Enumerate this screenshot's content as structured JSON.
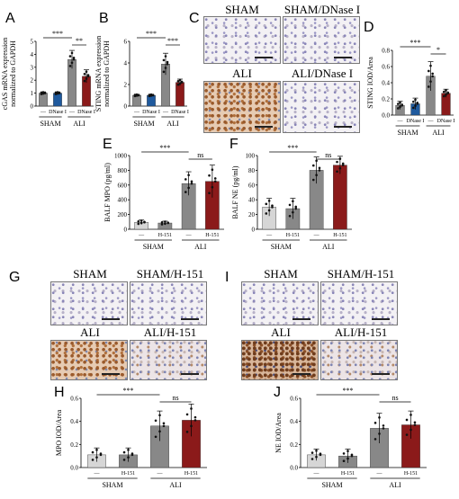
{
  "panel_letters": [
    "A",
    "B",
    "C",
    "D",
    "E",
    "F",
    "G",
    "H",
    "I",
    "J"
  ],
  "micrographs": {
    "C": {
      "top_left": "SHAM",
      "top_right": "SHAM/DNase I",
      "bottom_left": "ALI",
      "bottom_right": "ALI/DNase I"
    },
    "G": {
      "top_left": "SHAM",
      "top_right": "SHAM/H-151",
      "bottom_left": "ALI",
      "bottom_right": "ALI/H-151"
    },
    "I": {
      "top_left": "SHAM",
      "top_right": "SHAM/H-151",
      "bottom_left": "ALI",
      "bottom_right": "ALI/H-151"
    }
  },
  "colors": {
    "grey_bar": "#888888",
    "blue_bar": "#1f5a9e",
    "red_bar": "#8b1a1a",
    "sham_bar": "#d6d6d6"
  },
  "chart_data": [
    {
      "panel": "A",
      "type": "bar",
      "ylabel": "cGAS mRNA expression normalized to GAPDH",
      "ylabel_lines": [
        "cGAS mRNA expression",
        "normalized to GAPDH"
      ],
      "ylim": [
        0,
        5
      ],
      "yticks": [
        "0",
        "1",
        "2",
        "3",
        "4",
        "5"
      ],
      "categories": [
        "—",
        "DNase I",
        "—",
        "DNase I"
      ],
      "groups": [
        "SHAM",
        "ALI"
      ],
      "values": [
        1.0,
        1.0,
        3.6,
        2.3
      ],
      "errors": [
        0.1,
        0.1,
        0.7,
        0.5
      ],
      "sig": [
        {
          "pair": [
            0,
            2
          ],
          "label": "***"
        },
        {
          "pair": [
            2,
            3
          ],
          "label": "**"
        }
      ]
    },
    {
      "panel": "B",
      "type": "bar",
      "ylabel": "STING mRNA expression normalized to GAPDH",
      "ylabel_lines": [
        "STING mRNA expression",
        "normalized to GAPDH"
      ],
      "ylim": [
        0,
        6
      ],
      "yticks": [
        "0",
        "2",
        "4",
        "6"
      ],
      "categories": [
        "—",
        "DNase I",
        "—",
        "DNase I"
      ],
      "groups": [
        "SHAM",
        "ALI"
      ],
      "values": [
        1.0,
        1.0,
        3.9,
        2.2
      ],
      "errors": [
        0.1,
        0.1,
        1.0,
        0.3
      ],
      "sig": [
        {
          "pair": [
            0,
            2
          ],
          "label": "***"
        },
        {
          "pair": [
            2,
            3
          ],
          "label": "***"
        }
      ]
    },
    {
      "panel": "D",
      "type": "bar",
      "ylabel": "STING IOD/Area",
      "ylabel_lines": [
        "STING IOD/Area"
      ],
      "ylim": [
        0,
        0.8
      ],
      "yticks": [
        "0.0",
        "0.2",
        "0.4",
        "0.6",
        "0.8"
      ],
      "categories": [
        "—",
        "DNase I",
        "—",
        "DNase I"
      ],
      "groups": [
        "SHAM",
        "ALI"
      ],
      "values": [
        0.12,
        0.14,
        0.48,
        0.27
      ],
      "errors": [
        0.05,
        0.07,
        0.18,
        0.05
      ],
      "sig": [
        {
          "pair": [
            0,
            2
          ],
          "label": "***"
        },
        {
          "pair": [
            2,
            3
          ],
          "label": "*"
        }
      ]
    },
    {
      "panel": "E",
      "type": "bar",
      "ylabel": "BALF MPO (pg/ml)",
      "ylabel_lines": [
        "BALF MPO (pg/ml)"
      ],
      "ylim": [
        0,
        1000
      ],
      "yticks": [
        "0",
        "200",
        "400",
        "600",
        "800",
        "1000"
      ],
      "categories": [
        "—",
        "H-151",
        "—",
        "H-151"
      ],
      "groups": [
        "SHAM",
        "ALI"
      ],
      "values": [
        95,
        85,
        620,
        650
      ],
      "errors": [
        30,
        25,
        160,
        220
      ],
      "sig": [
        {
          "pair": [
            0,
            2
          ],
          "label": "***"
        },
        {
          "pair": [
            2,
            3
          ],
          "label": "ns"
        }
      ]
    },
    {
      "panel": "F",
      "type": "bar",
      "ylabel": "BALF NE (pg/ml)",
      "ylabel_lines": [
        "BALF NE (pg/ml)"
      ],
      "ylim": [
        0,
        100
      ],
      "yticks": [
        "0",
        "20",
        "40",
        "60",
        "80",
        "100"
      ],
      "categories": [
        "—",
        "H-151",
        "—",
        "H-151"
      ],
      "groups": [
        "SHAM",
        "ALI"
      ],
      "values": [
        30,
        28,
        80,
        87
      ],
      "errors": [
        12,
        14,
        18,
        12
      ],
      "sig": [
        {
          "pair": [
            0,
            2
          ],
          "label": "***"
        },
        {
          "pair": [
            2,
            3
          ],
          "label": "ns"
        }
      ]
    },
    {
      "panel": "H",
      "type": "bar",
      "ylabel": "MPO IOD/Area",
      "ylabel_lines": [
        "MPO IOD/Area"
      ],
      "ylim": [
        0,
        0.6
      ],
      "yticks": [
        "0.0",
        "0.2",
        "0.4",
        "0.6"
      ],
      "categories": [
        "—",
        "H-151",
        "—",
        "H-151"
      ],
      "groups": [
        "SHAM",
        "ALI"
      ],
      "values": [
        0.11,
        0.11,
        0.36,
        0.41
      ],
      "errors": [
        0.06,
        0.06,
        0.13,
        0.14
      ],
      "sig": [
        {
          "pair": [
            0,
            2
          ],
          "label": "***"
        },
        {
          "pair": [
            2,
            3
          ],
          "label": "ns"
        }
      ]
    },
    {
      "panel": "J",
      "type": "bar",
      "ylabel": "NE IOD/Area",
      "ylabel_lines": [
        "NE IOD/Area"
      ],
      "ylim": [
        0,
        0.6
      ],
      "yticks": [
        "0.0",
        "0.2",
        "0.4",
        "0.6"
      ],
      "categories": [
        "—",
        "H-151",
        "—",
        "H-151"
      ],
      "groups": [
        "SHAM",
        "ALI"
      ],
      "values": [
        0.11,
        0.1,
        0.34,
        0.37
      ],
      "errors": [
        0.05,
        0.06,
        0.13,
        0.12
      ],
      "sig": [
        {
          "pair": [
            0,
            2
          ],
          "label": "***"
        },
        {
          "pair": [
            2,
            3
          ],
          "label": "ns"
        }
      ]
    }
  ]
}
